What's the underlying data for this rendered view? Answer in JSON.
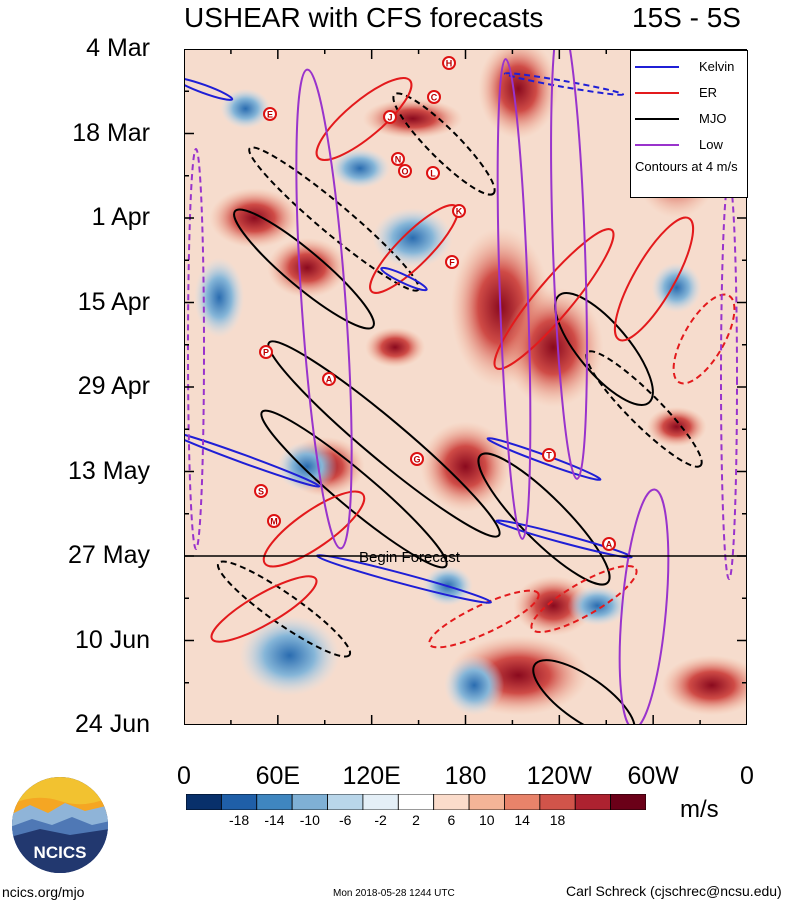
{
  "header": {
    "title": "USHEAR with CFS forecasts",
    "region": "15S - 5S"
  },
  "chart_data": {
    "type": "heatmap",
    "title": "USHEAR with CFS forecasts",
    "subtitle": "15S - 5S",
    "y_tick_labels": [
      "4 Mar",
      "18 Mar",
      "1 Apr",
      "15 Apr",
      "29 Apr",
      "13 May",
      "27 May",
      "10 Jun",
      "24 Jun"
    ],
    "x_tick_labels": [
      "0",
      "60E",
      "120E",
      "180",
      "120W",
      "60W",
      "0"
    ],
    "x_range_deg_east": [
      0,
      360
    ],
    "date_range": [
      "4 Mar",
      "24 Jun"
    ],
    "forecast_start": "27 May",
    "forecast_label": "Begin Forecast",
    "colorbar": {
      "units": "m/s",
      "labels": [
        "-18",
        "-14",
        "-10",
        "-6",
        "-2",
        "2",
        "6",
        "10",
        "14",
        "18"
      ],
      "colors": [
        "#08306b",
        "#1f5fa8",
        "#3f86c0",
        "#7fb0d5",
        "#b9d6ea",
        "#e4eff7",
        "#ffffff",
        "#fbdccb",
        "#f4b497",
        "#e8836a",
        "#d1544a",
        "#ad2230",
        "#6b0018"
      ]
    },
    "legend": {
      "position": "top-right",
      "entries": [
        {
          "name": "Kelvin",
          "color": "#1f1fd6"
        },
        {
          "name": "ER",
          "color": "#e31a1c"
        },
        {
          "name": "MJO",
          "color": "#000000"
        },
        {
          "name": "Low",
          "color": "#9933cc"
        }
      ],
      "note": "Contours at 4 m/s"
    },
    "storm_markers": [
      "H",
      "C",
      "E",
      "J",
      "N",
      "O",
      "L",
      "K",
      "F",
      "P",
      "A",
      "G",
      "S",
      "M",
      "T",
      "A"
    ]
  },
  "footer": {
    "site": "ncics.org/mjo",
    "timestamp": "Mon 2018-05-28 1244 UTC",
    "author": "Carl Schreck (cjschrec@ncsu.edu)",
    "logo_text": "NCICS"
  }
}
